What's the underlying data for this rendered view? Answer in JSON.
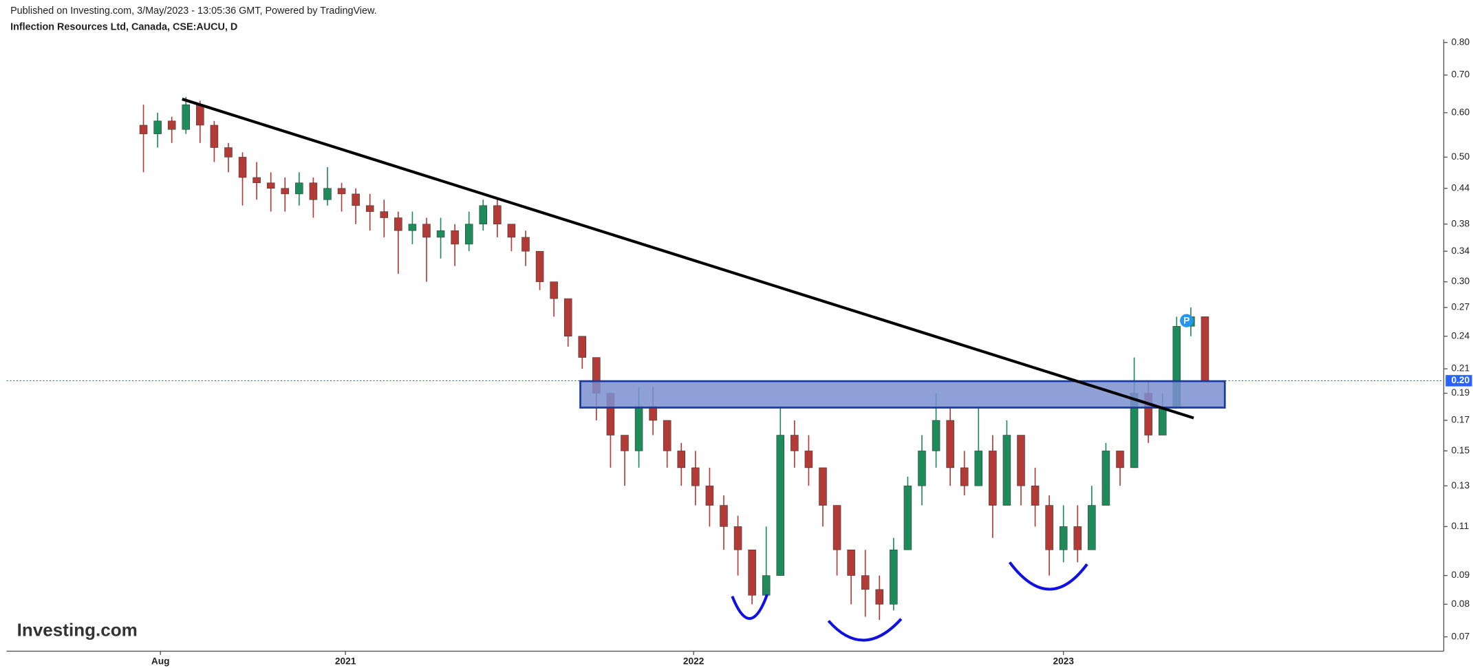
{
  "header": {
    "published": "Published on Investing.com, 3/May/2023 - 13:05:36 GMT, Powered by TradingView.",
    "symbol": "Inflection Resources Ltd, Canada, CSE:AUCU, D"
  },
  "logo": "Investing.com",
  "chart_data": {
    "type": "candlestick",
    "log_scale": true,
    "up_color": "#1f8a5a",
    "down_color": "#b23b36",
    "xlim": [
      -9.67,
      91.87
    ],
    "xticks": [
      {
        "value": 1.2,
        "label": "Aug"
      },
      {
        "value": 14.27,
        "label": "2021"
      },
      {
        "value": 38.87,
        "label": "2022"
      },
      {
        "value": 65,
        "label": "2023"
      }
    ],
    "ylim": [
      0.066,
      0.81
    ],
    "yticks": [
      0.07,
      0.08,
      0.09,
      0.11,
      0.13,
      0.15,
      0.17,
      0.19,
      0.21,
      0.24,
      0.27,
      {
        "value": 0.3,
        "label": "0.30"
      },
      0.34,
      0.38,
      0.44,
      {
        "value": 0.5,
        "label": "0.50"
      },
      {
        "value": 0.6,
        "label": "0.60"
      },
      {
        "value": 0.7,
        "label": "0.70"
      },
      {
        "value": 0.8,
        "label": "0.80"
      }
    ],
    "last_price": {
      "value": 0.2,
      "label": "0.20"
    },
    "marker_label": "P",
    "open": [
      0.57,
      0.55,
      0.58,
      0.56,
      0.62,
      0.57,
      0.52,
      0.5,
      0.46,
      0.45,
      0.44,
      0.43,
      0.45,
      0.42,
      0.44,
      0.43,
      0.41,
      0.4,
      0.39,
      0.37,
      0.38,
      0.36,
      0.37,
      0.35,
      0.38,
      0.41,
      0.38,
      0.36,
      0.34,
      0.3,
      0.28,
      0.24,
      0.22,
      0.19,
      0.16,
      0.15,
      0.18,
      0.17,
      0.15,
      0.14,
      0.13,
      0.12,
      0.11,
      0.1,
      0.083,
      0.09,
      0.16,
      0.15,
      0.14,
      0.12,
      0.1,
      0.09,
      0.085,
      0.08,
      0.1,
      0.13,
      0.15,
      0.17,
      0.14,
      0.13,
      0.15,
      0.12,
      0.16,
      0.13,
      0.12,
      0.1,
      0.11,
      0.1,
      0.12,
      0.15,
      0.14,
      0.19,
      0.16,
      0.18,
      0.25,
      0.26
    ],
    "high": [
      0.62,
      0.6,
      0.59,
      0.64,
      0.63,
      0.58,
      0.53,
      0.51,
      0.49,
      0.47,
      0.46,
      0.47,
      0.46,
      0.48,
      0.45,
      0.44,
      0.43,
      0.42,
      0.4,
      0.4,
      0.39,
      0.39,
      0.38,
      0.4,
      0.42,
      0.42,
      0.38,
      0.37,
      0.34,
      0.3,
      0.28,
      0.24,
      0.22,
      0.19,
      0.16,
      0.195,
      0.195,
      0.17,
      0.155,
      0.15,
      0.14,
      0.125,
      0.115,
      0.1,
      0.11,
      0.18,
      0.17,
      0.16,
      0.14,
      0.12,
      0.1,
      0.1,
      0.09,
      0.105,
      0.135,
      0.16,
      0.19,
      0.18,
      0.15,
      0.18,
      0.16,
      0.17,
      0.16,
      0.14,
      0.125,
      0.12,
      0.12,
      0.13,
      0.155,
      0.15,
      0.22,
      0.2,
      0.19,
      0.26,
      0.27,
      0.26
    ],
    "low": [
      0.47,
      0.52,
      0.53,
      0.55,
      0.53,
      0.49,
      0.47,
      0.41,
      0.42,
      0.4,
      0.4,
      0.41,
      0.39,
      0.41,
      0.4,
      0.38,
      0.37,
      0.36,
      0.31,
      0.35,
      0.3,
      0.33,
      0.32,
      0.34,
      0.37,
      0.36,
      0.34,
      0.32,
      0.29,
      0.26,
      0.23,
      0.21,
      0.17,
      0.14,
      0.13,
      0.14,
      0.16,
      0.14,
      0.13,
      0.12,
      0.11,
      0.1,
      0.09,
      0.08,
      0.082,
      0.09,
      0.14,
      0.13,
      0.11,
      0.09,
      0.08,
      0.076,
      0.075,
      0.078,
      0.1,
      0.12,
      0.14,
      0.13,
      0.125,
      0.13,
      0.105,
      0.12,
      0.12,
      0.11,
      0.09,
      0.095,
      0.095,
      0.1,
      0.12,
      0.13,
      0.14,
      0.155,
      0.16,
      0.18,
      0.24,
      0.2
    ],
    "close": [
      0.55,
      0.58,
      0.56,
      0.62,
      0.57,
      0.52,
      0.5,
      0.46,
      0.45,
      0.44,
      0.43,
      0.45,
      0.42,
      0.44,
      0.43,
      0.41,
      0.4,
      0.39,
      0.37,
      0.38,
      0.36,
      0.37,
      0.35,
      0.38,
      0.41,
      0.38,
      0.36,
      0.34,
      0.3,
      0.28,
      0.24,
      0.22,
      0.19,
      0.16,
      0.15,
      0.18,
      0.17,
      0.15,
      0.14,
      0.13,
      0.12,
      0.11,
      0.1,
      0.083,
      0.09,
      0.16,
      0.15,
      0.14,
      0.12,
      0.1,
      0.09,
      0.085,
      0.08,
      0.1,
      0.13,
      0.15,
      0.17,
      0.14,
      0.13,
      0.15,
      0.12,
      0.16,
      0.13,
      0.12,
      0.1,
      0.11,
      0.1,
      0.12,
      0.15,
      0.14,
      0.19,
      0.16,
      0.18,
      0.25,
      0.26,
      0.2
    ]
  }
}
